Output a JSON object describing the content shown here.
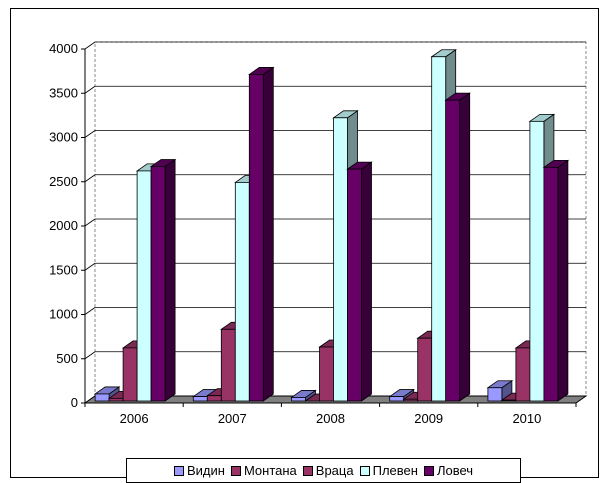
{
  "chart_data": {
    "type": "bar",
    "title": "",
    "xlabel": "",
    "ylabel": "",
    "categories": [
      "2006",
      "2007",
      "2008",
      "2009",
      "2010"
    ],
    "ylim": [
      0,
      4000
    ],
    "yticks": [
      "0",
      "500",
      "1000",
      "1500",
      "2000",
      "2500",
      "3000",
      "3500",
      "4000"
    ],
    "grid": true,
    "legend_position": "bottom",
    "series": [
      {
        "name": "Видин",
        "color": "#9999ff",
        "values": [
          80,
          50,
          40,
          50,
          150
        ]
      },
      {
        "name": "Монтана",
        "color": "#993366",
        "values": [
          30,
          60,
          0,
          20,
          10
        ]
      },
      {
        "name": "Враца",
        "color": "#993366",
        "values": [
          600,
          810,
          610,
          710,
          600
        ]
      },
      {
        "name": "Плевен",
        "color": "#ccffff",
        "values": [
          2600,
          2470,
          3200,
          3890,
          3160
        ]
      },
      {
        "name": "Ловеч",
        "color": "#660066",
        "values": [
          2650,
          3690,
          2620,
          3400,
          2640
        ]
      }
    ]
  }
}
